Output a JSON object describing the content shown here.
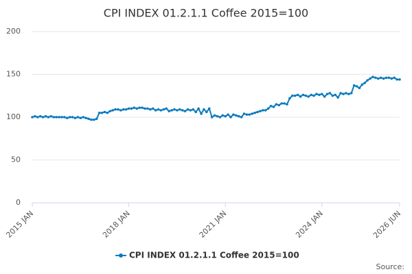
{
  "chart_data": {
    "type": "line",
    "title": "CPI INDEX 01.2.1.1 Coffee 2015=100",
    "source": "Source:",
    "categories": [
      "2015 JAN",
      null,
      null,
      null,
      null,
      null,
      null,
      null,
      null,
      null,
      null,
      null,
      null,
      null,
      null,
      null,
      null,
      null,
      null,
      null,
      null,
      null,
      null,
      null,
      null,
      null,
      null,
      null,
      null,
      null,
      null,
      null,
      null,
      null,
      null,
      null,
      "2018 JAN",
      null,
      null,
      null,
      null,
      null,
      null,
      null,
      null,
      null,
      null,
      null,
      null,
      null,
      null,
      null,
      null,
      null,
      null,
      null,
      null,
      null,
      null,
      null,
      null,
      null,
      null,
      null,
      null,
      null,
      null,
      null,
      null,
      null,
      null,
      null,
      "2021 JAN",
      null,
      null,
      null,
      null,
      null,
      null,
      null,
      null,
      null,
      null,
      null,
      null,
      null,
      null,
      null,
      null,
      null,
      null,
      null,
      null,
      null,
      null,
      null,
      null,
      null,
      null,
      null,
      null,
      null,
      null,
      null,
      null,
      null,
      null,
      null,
      "2024 JAN",
      null,
      null,
      null,
      null,
      null,
      null,
      null,
      null,
      null,
      null,
      null,
      null,
      null,
      null,
      null,
      null,
      null,
      null,
      null,
      null,
      null,
      null,
      null,
      null,
      null,
      null,
      null,
      null,
      "2026 JUN"
    ],
    "series": [
      {
        "name": "CPI INDEX 01.2.1.1 Coffee 2015=100",
        "color": "#0a7bbf",
        "values": [
          100,
          101,
          100,
          101,
          100,
          101,
          100,
          101,
          100,
          100,
          100,
          100,
          100,
          99,
          100,
          100,
          99,
          100,
          99,
          100,
          99,
          98,
          97,
          97,
          98,
          105,
          105,
          106,
          105,
          107,
          108,
          109,
          109,
          108,
          109,
          109,
          110,
          110,
          111,
          110,
          111,
          111,
          110,
          110,
          109,
          110,
          108,
          109,
          108,
          109,
          110,
          107,
          108,
          109,
          108,
          109,
          108,
          107,
          109,
          108,
          109,
          106,
          110,
          104,
          109,
          106,
          110,
          100,
          102,
          101,
          100,
          102,
          101,
          103,
          100,
          103,
          102,
          101,
          100,
          104,
          103,
          103,
          104,
          105,
          106,
          107,
          108,
          108,
          110,
          113,
          112,
          115,
          114,
          116,
          116,
          115,
          122,
          125,
          125,
          126,
          124,
          126,
          125,
          124,
          126,
          125,
          127,
          126,
          127,
          124,
          127,
          128,
          125,
          126,
          123,
          128,
          127,
          128,
          127,
          128,
          137,
          136,
          134,
          138,
          140,
          143,
          145,
          147,
          146,
          145,
          146,
          145,
          146,
          146,
          145,
          146,
          144,
          144
        ]
      }
    ],
    "ylim": [
      0,
      200
    ],
    "yticks": [
      0,
      50,
      100,
      150,
      200
    ],
    "grid": true
  }
}
